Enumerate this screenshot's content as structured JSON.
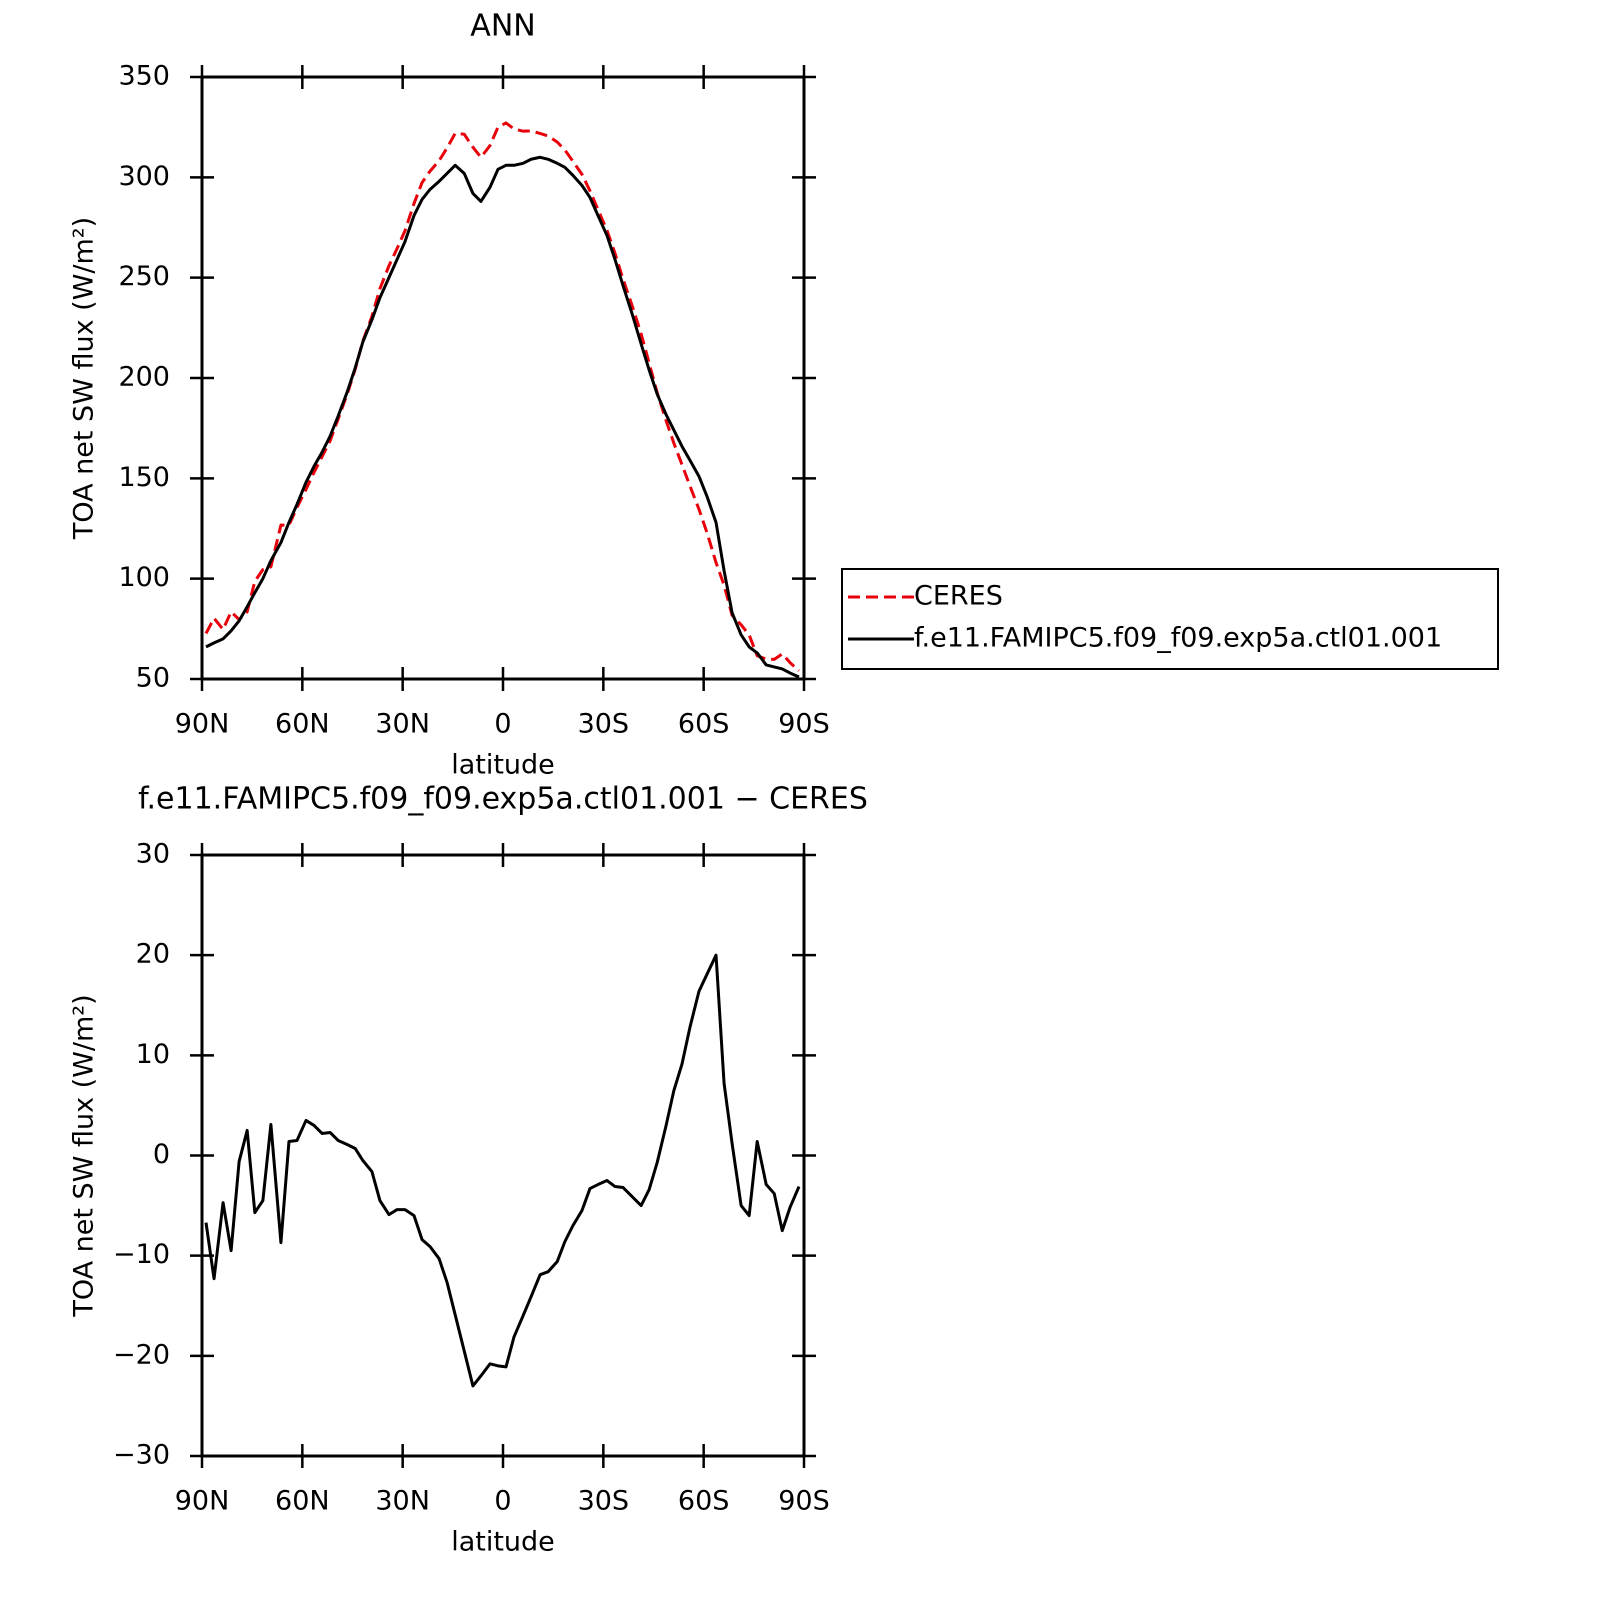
{
  "chart_data": [
    {
      "type": "line",
      "title": "ANN",
      "xlabel": "latitude",
      "ylabel": "TOA net SW flux (W/m²)",
      "x": [
        88.8,
        86.4,
        83.7,
        81.3,
        78.9,
        76.5,
        74.2,
        71.8,
        69.4,
        66.4,
        64.0,
        61.6,
        58.9,
        56.5,
        54.1,
        51.7,
        49.3,
        46.6,
        44.2,
        41.9,
        39.2,
        36.8,
        34.1,
        31.7,
        29.3,
        26.6,
        24.2,
        21.8,
        19.1,
        16.7,
        14.3,
        11.6,
        9.0,
        6.6,
        3.9,
        1.5,
        -0.9,
        -3.3,
        -6.0,
        -8.4,
        -11.1,
        -13.5,
        -16.2,
        -18.5,
        -20.9,
        -23.6,
        -26.0,
        -28.4,
        -31.1,
        -33.5,
        -35.9,
        -38.6,
        -41.3,
        -43.7,
        -46.1,
        -48.7,
        -51.1,
        -53.5,
        -55.9,
        -58.6,
        -61.0,
        -63.7,
        -66.1,
        -68.5,
        -71.2,
        -73.6,
        -76.0,
        -78.7,
        -81.1,
        -83.5,
        -85.8,
        -88.5
      ],
      "series": [
        {
          "name": "CERES",
          "color": "#e8000b",
          "line_style": "dashed",
          "values": [
            72.7,
            80.3,
            74.7,
            83.5,
            79.6,
            83.5,
            98.7,
            104.5,
            105.9,
            126.7,
            126.6,
            135.5,
            144.5,
            153,
            160.8,
            168.7,
            179.5,
            191.9,
            204.3,
            218.5,
            230.6,
            244.5,
            255.9,
            264.4,
            273.4,
            287,
            297.4,
            303.1,
            308.3,
            314.7,
            321.9,
            321.5,
            315,
            310,
            315.8,
            325,
            327.1,
            324.1,
            323,
            323.1,
            321.9,
            320.6,
            317.6,
            313.6,
            308,
            301.5,
            293.3,
            283.9,
            273.5,
            262.1,
            249.2,
            236.1,
            222,
            207.4,
            192.7,
            179.1,
            167.5,
            156.9,
            146.2,
            134.6,
            122.9,
            108,
            96.8,
            81.8,
            77,
            72,
            61.6,
            59.9,
            59.8,
            62.5,
            58.2,
            54.1
          ]
        },
        {
          "name": "f.e11.FAMIPC5.f09_f09.exp5a.ctl01.001",
          "color": "#000000",
          "line_style": "solid",
          "values": [
            66,
            68,
            70,
            74,
            79,
            86,
            93,
            100,
            109,
            118,
            128,
            137,
            148,
            156,
            163,
            171,
            181,
            193,
            205,
            218,
            229,
            240,
            250,
            259,
            268,
            281,
            289,
            294,
            298,
            302,
            306,
            302,
            292,
            288,
            295,
            304,
            306,
            306,
            307,
            309,
            310,
            309,
            307,
            305,
            301,
            296,
            290,
            281,
            271,
            259,
            246,
            232,
            217,
            204,
            192,
            182,
            174,
            166,
            159,
            151,
            141,
            128,
            104,
            83,
            72,
            66,
            63,
            57,
            56,
            55,
            53,
            51
          ]
        }
      ],
      "xlim": [
        90,
        -90
      ],
      "xticks": [
        {
          "value": 90,
          "label": "90N"
        },
        {
          "value": 60,
          "label": "60N"
        },
        {
          "value": 30,
          "label": "30N"
        },
        0,
        {
          "value": -30,
          "label": "30S"
        },
        {
          "value": -60,
          "label": "60S"
        },
        {
          "value": -90,
          "label": "90S"
        }
      ],
      "ylim": [
        50,
        350
      ],
      "yticks": [
        50,
        100,
        150,
        200,
        250,
        300,
        350
      ],
      "legend": "outside-right"
    },
    {
      "type": "line",
      "title": "f.e11.FAMIPC5.f09_f09.exp5a.ctl01.001 − CERES",
      "xlabel": "latitude",
      "ylabel": "TOA net SW flux (W/m²)",
      "x": [
        88.8,
        86.4,
        83.7,
        81.3,
        78.9,
        76.5,
        74.2,
        71.8,
        69.4,
        66.4,
        64.0,
        61.6,
        58.9,
        56.5,
        54.1,
        51.7,
        49.3,
        46.6,
        44.2,
        41.9,
        39.2,
        36.8,
        34.1,
        31.7,
        29.3,
        26.6,
        24.2,
        21.8,
        19.1,
        16.7,
        14.3,
        11.6,
        9.0,
        6.6,
        3.9,
        1.5,
        -0.9,
        -3.3,
        -6.0,
        -8.4,
        -11.1,
        -13.5,
        -16.2,
        -18.5,
        -20.9,
        -23.6,
        -26.0,
        -28.4,
        -31.1,
        -33.5,
        -35.9,
        -38.6,
        -41.3,
        -43.7,
        -46.1,
        -48.7,
        -51.1,
        -53.5,
        -55.9,
        -58.6,
        -61.0,
        -63.7,
        -66.1,
        -68.5,
        -71.2,
        -73.6,
        -76.0,
        -78.7,
        -81.1,
        -83.5,
        -85.8,
        -88.5
      ],
      "series": [
        {
          "color": "#000000",
          "line_style": "solid",
          "values": [
            -6.7,
            -12.3,
            -4.7,
            -9.5,
            -0.6,
            2.5,
            -5.7,
            -4.5,
            3.1,
            -8.7,
            1.4,
            1.5,
            3.5,
            3.0,
            2.2,
            2.3,
            1.5,
            1.1,
            0.7,
            -0.5,
            -1.6,
            -4.5,
            -5.9,
            -5.4,
            -5.4,
            -6.0,
            -8.4,
            -9.1,
            -10.3,
            -12.7,
            -15.9,
            -19.5,
            -23.0,
            -22.0,
            -20.8,
            -21.0,
            -21.1,
            -18.1,
            -16.0,
            -14.1,
            -11.9,
            -11.6,
            -10.6,
            -8.6,
            -7.0,
            -5.5,
            -3.3,
            -2.9,
            -2.5,
            -3.1,
            -3.2,
            -4.1,
            -5.0,
            -3.4,
            -0.7,
            2.9,
            6.5,
            9.1,
            12.8,
            16.4,
            18.1,
            20.0,
            7.2,
            1.2,
            -5.0,
            -6.0,
            1.4,
            -2.9,
            -3.8,
            -7.5,
            -5.2,
            -3.1
          ]
        }
      ],
      "xlim": [
        90,
        -90
      ],
      "xticks": [
        {
          "value": 90,
          "label": "90N"
        },
        {
          "value": 60,
          "label": "60N"
        },
        {
          "value": 30,
          "label": "30N"
        },
        0,
        {
          "value": -30,
          "label": "30S"
        },
        {
          "value": -60,
          "label": "60S"
        },
        {
          "value": -90,
          "label": "90S"
        }
      ],
      "ylim": [
        -30,
        30
      ],
      "yticks": [
        {
          "value": -30,
          "label": "−30"
        },
        {
          "value": -20,
          "label": "−20"
        },
        {
          "value": -10,
          "label": "−10"
        },
        0,
        10,
        20,
        30
      ]
    }
  ]
}
